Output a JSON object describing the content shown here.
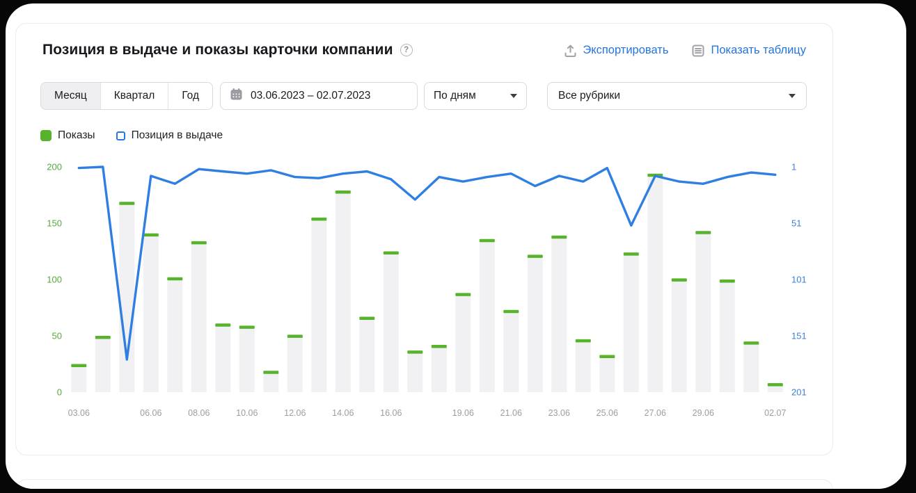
{
  "header": {
    "title": "Позиция в выдаче и показы карточки компании",
    "help_icon": "question-mark-circle",
    "export_label": "Экспортировать",
    "show_table_label": "Показать таблицу",
    "link_color": "#2374dc"
  },
  "filters": {
    "period_tabs": [
      {
        "label": "Месяц",
        "selected": true
      },
      {
        "label": "Квартал",
        "selected": false
      },
      {
        "label": "Год",
        "selected": false
      }
    ],
    "date_range": "03.06.2023 – 02.07.2023",
    "granularity_selected": "По дням",
    "rubric_selected": "Все рубрики"
  },
  "legend": [
    {
      "label": "Показы",
      "color": "#57b32c",
      "style": "filled"
    },
    {
      "label": "Позиция в выдаче",
      "color": "#2479e0",
      "style": "outline"
    }
  ],
  "chart_data": {
    "type": "bar",
    "categories": [
      "03.06",
      "04.06",
      "05.06",
      "06.06",
      "07.06",
      "08.06",
      "09.06",
      "10.06",
      "11.06",
      "12.06",
      "13.06",
      "14.06",
      "15.06",
      "16.06",
      "17.06",
      "18.06",
      "19.06",
      "20.06",
      "21.06",
      "22.06",
      "23.06",
      "24.06",
      "25.06",
      "26.06",
      "27.06",
      "28.06",
      "29.06",
      "30.06",
      "01.07",
      "02.07"
    ],
    "series": [
      {
        "name": "Показы",
        "type": "bar",
        "axis": "left",
        "values": [
          25,
          50,
          169,
          141,
          102,
          134,
          61,
          59,
          19,
          51,
          155,
          179,
          67,
          125,
          37,
          42,
          88,
          136,
          73,
          122,
          139,
          47,
          33,
          124,
          194,
          101,
          143,
          100,
          45,
          8
        ]
      },
      {
        "name": "Позиция в выдаче",
        "type": "line",
        "axis": "right",
        "values": [
          2,
          1,
          172,
          9,
          16,
          3,
          5,
          7,
          4,
          10,
          11,
          7,
          5,
          12,
          30,
          10,
          14,
          10,
          7,
          18,
          9,
          14,
          2,
          53,
          9,
          14,
          16,
          10,
          6,
          8
        ]
      }
    ],
    "left_axis": {
      "ticks": [
        200,
        150,
        100,
        50,
        0
      ],
      "lim": [
        0,
        200
      ],
      "color": "#55a93c"
    },
    "right_axis": {
      "ticks": [
        1,
        51,
        101,
        151,
        201
      ],
      "lim": [
        1,
        201
      ],
      "inverted": true,
      "color": "#3b82d8"
    },
    "x_ticks": [
      {
        "i": 0,
        "label": "03.06"
      },
      {
        "i": 3,
        "label": "06.06"
      },
      {
        "i": 5,
        "label": "08.06"
      },
      {
        "i": 7,
        "label": "10.06"
      },
      {
        "i": 9,
        "label": "12.06"
      },
      {
        "i": 11,
        "label": "14.06"
      },
      {
        "i": 13,
        "label": "16.06"
      },
      {
        "i": 16,
        "label": "19.06"
      },
      {
        "i": 18,
        "label": "21.06"
      },
      {
        "i": 20,
        "label": "23.06"
      },
      {
        "i": 22,
        "label": "25.06"
      },
      {
        "i": 24,
        "label": "27.06"
      },
      {
        "i": 26,
        "label": "29.06"
      },
      {
        "i": 29,
        "label": "02.07"
      }
    ],
    "x_label_color": "#9c9ca3",
    "bar_color": "#f1f1f3",
    "bar_cap_color": "#57b32c",
    "line_color": "#2e7fe1",
    "grid": false,
    "legend_position": "top-left"
  }
}
